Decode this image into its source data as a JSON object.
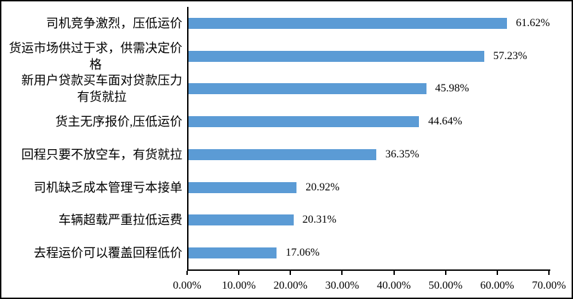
{
  "chart_data": {
    "type": "bar",
    "orientation": "horizontal",
    "title": "",
    "xlabel": "",
    "ylabel": "",
    "xlim": [
      0,
      70
    ],
    "grid": false,
    "legend_position": "none",
    "bar_color": "#5B9BD5",
    "axis_color": "#000000",
    "categories": [
      "司机竞争激烈，压低运价",
      "货运市场供过于求，供需决定价\n格",
      "新用户贷款买车面对贷款压力\n有货就拉",
      "货主无序报价,压低运价",
      "回程只要不放空车，有货就拉",
      "司机缺乏成本管理亏本接单",
      "车辆超载严重拉低运费",
      "去程运价可以覆盖回程低价"
    ],
    "values": [
      61.62,
      57.23,
      45.98,
      44.64,
      36.35,
      20.92,
      20.31,
      17.06
    ],
    "value_labels": [
      "61.62%",
      "57.23%",
      "45.98%",
      "44.64%",
      "36.35%",
      "20.92%",
      "20.31%",
      "17.06%"
    ],
    "x_ticks": [
      "0.00%",
      "10.00%",
      "20.00%",
      "30.00%",
      "40.00%",
      "50.00%",
      "60.00%",
      "70.00%"
    ]
  }
}
